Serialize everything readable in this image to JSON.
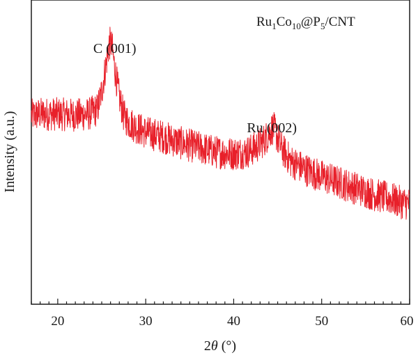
{
  "chart_data": {
    "type": "line",
    "title": "",
    "xlabel": "2θ (°)",
    "xlabel_parts": {
      "var": "θ",
      "prefix": "2",
      "suffix": " (°)"
    },
    "ylabel": "Intensity (a.u.)",
    "xlim": [
      17,
      60
    ],
    "ylim": [
      0,
      1
    ],
    "x_ticks": [
      20,
      30,
      40,
      50,
      60
    ],
    "x_ticks_labels": [
      "20",
      "30",
      "40",
      "50",
      "60"
    ],
    "x_minor_step": 1,
    "y_ticks_labels": [],
    "grid": false,
    "legend": {
      "position": "top-right",
      "label": "Ru1Co10@P5/CNT",
      "label_parts": [
        {
          "text": "Ru"
        },
        {
          "text": "1",
          "sub": true
        },
        {
          "text": "Co"
        },
        {
          "text": "10",
          "sub": true
        },
        {
          "text": "@P"
        },
        {
          "text": "5",
          "sub": true
        },
        {
          "text": "/CNT"
        }
      ]
    },
    "annotations": [
      {
        "text": "C (001)",
        "x": 26.0
      },
      {
        "text": "Ru (002)",
        "x": 44.5
      }
    ],
    "series": [
      {
        "name": "Ru1Co10@P5/CNT",
        "color": "#e8202a",
        "noise_amplitude": 0.055,
        "x": [
          17,
          18,
          20,
          22,
          23.5,
          24.5,
          25.0,
          25.5,
          25.8,
          26.0,
          26.2,
          26.5,
          27.0,
          27.5,
          28,
          29,
          30,
          32,
          34,
          36,
          38,
          40,
          41.5,
          42.5,
          43.5,
          44.0,
          44.3,
          44.5,
          44.7,
          45.0,
          45.5,
          46.5,
          48,
          50,
          52,
          54,
          56,
          58,
          59,
          60
        ],
        "y": [
          0.62,
          0.625,
          0.625,
          0.622,
          0.625,
          0.64,
          0.7,
          0.79,
          0.85,
          0.86,
          0.84,
          0.77,
          0.68,
          0.62,
          0.6,
          0.58,
          0.565,
          0.55,
          0.53,
          0.515,
          0.5,
          0.495,
          0.5,
          0.515,
          0.54,
          0.56,
          0.575,
          0.58,
          0.57,
          0.545,
          0.51,
          0.47,
          0.445,
          0.42,
          0.4,
          0.38,
          0.36,
          0.345,
          0.335,
          0.33
        ]
      }
    ]
  }
}
